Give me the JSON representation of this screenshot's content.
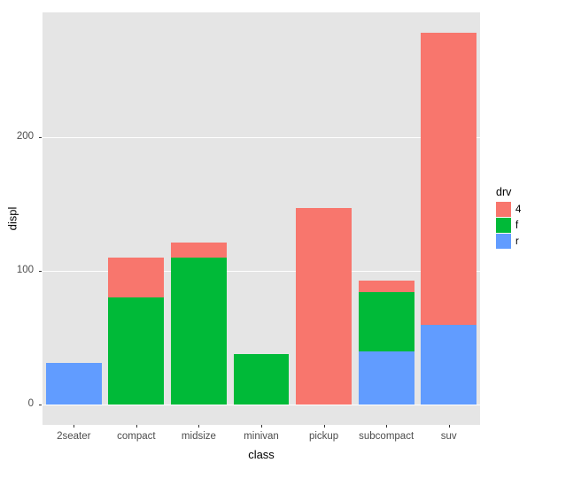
{
  "chart": {
    "type": "bar_stacked",
    "panel_bg": "#e5e5e5",
    "gridline_color": "#ffffff",
    "xlabel": "class",
    "ylabel": "displ",
    "label_fontsize": 13,
    "tick_fontsize": 11.5,
    "categories": [
      "2seater",
      "compact",
      "midsize",
      "minivan",
      "pickup",
      "subcompact",
      "suv"
    ],
    "legend_title": "drv",
    "series": {
      "4": "#f8766d",
      "f": "#00ba38",
      "r": "#619cff"
    },
    "stacks": {
      "2seater": {
        "r": 31,
        "f": 0,
        "4": 0
      },
      "compact": {
        "r": 0,
        "f": 80,
        "4": 30
      },
      "midsize": {
        "r": 0,
        "f": 110,
        "4": 11
      },
      "minivan": {
        "r": 0,
        "f": 38,
        "4": 0
      },
      "pickup": {
        "r": 0,
        "f": 0,
        "4": 147
      },
      "subcompact": {
        "r": 40,
        "f": 44,
        "4": 9
      },
      "suv": {
        "r": 60,
        "f": 0,
        "4": 218
      }
    },
    "stack_order": [
      "r",
      "f",
      "4"
    ],
    "yticks": [
      0,
      100,
      200
    ],
    "ylim": [
      -15,
      293
    ],
    "bar_width": 0.89
  }
}
